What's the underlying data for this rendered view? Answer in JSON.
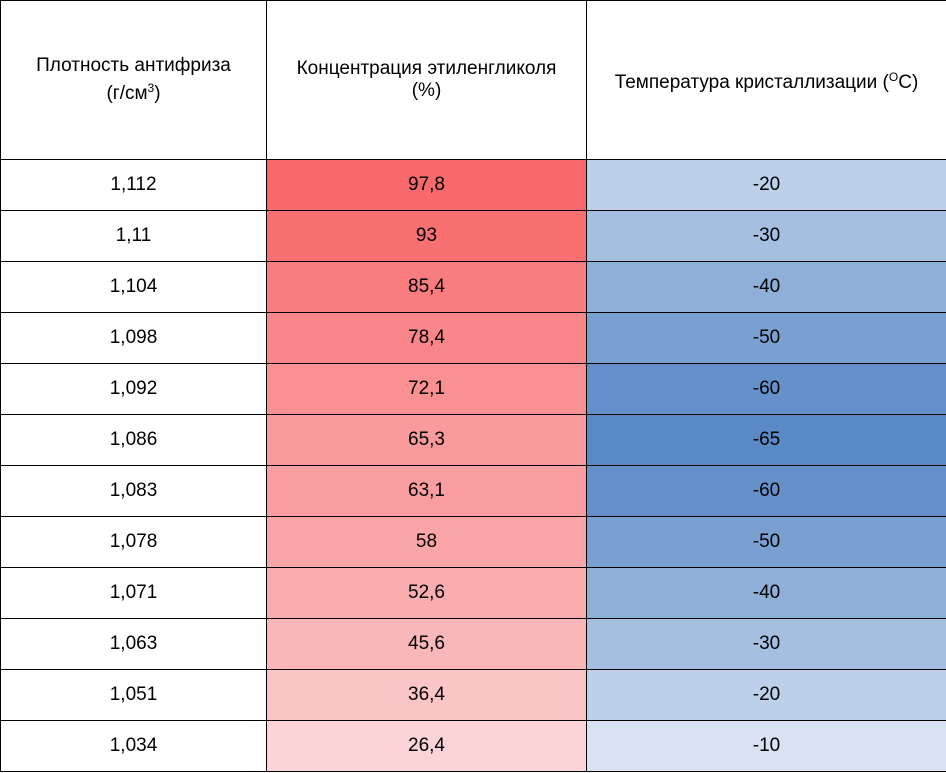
{
  "headers": {
    "density": {
      "text": "Плотность антифриза",
      "unit_prefix": "(г/см",
      "unit_sup": "3",
      "unit_suffix": ")"
    },
    "concentration": {
      "text": "Концентрация этиленгликоля",
      "unit": "(%)"
    },
    "temperature": {
      "text": "Температура кристаллизации (",
      "unit_sup": "O",
      "unit_suffix": "C)"
    }
  },
  "colors": {
    "concentration_max": "#F8696B",
    "scale_min": "#FCFCFF",
    "temperature_max": "#5A8AC6"
  },
  "rows": [
    {
      "density": "1,112",
      "concentration": "97,8",
      "temperature": "-20"
    },
    {
      "density": "1,11",
      "concentration": "93",
      "temperature": "-30"
    },
    {
      "density": "1,104",
      "concentration": "85,4",
      "temperature": "-40"
    },
    {
      "density": "1,098",
      "concentration": "78,4",
      "temperature": "-50"
    },
    {
      "density": "1,092",
      "concentration": "72,1",
      "temperature": "-60"
    },
    {
      "density": "1,086",
      "concentration": "65,3",
      "temperature": "-65"
    },
    {
      "density": "1,083",
      "concentration": "63,1",
      "temperature": "-60"
    },
    {
      "density": "1,078",
      "concentration": "58",
      "temperature": "-50"
    },
    {
      "density": "1,071",
      "concentration": "52,6",
      "temperature": "-40"
    },
    {
      "density": "1,063",
      "concentration": "45,6",
      "temperature": "-30"
    },
    {
      "density": "1,051",
      "concentration": "36,4",
      "temperature": "-20"
    },
    {
      "density": "1,034",
      "concentration": "26,4",
      "temperature": "-10"
    }
  ]
}
